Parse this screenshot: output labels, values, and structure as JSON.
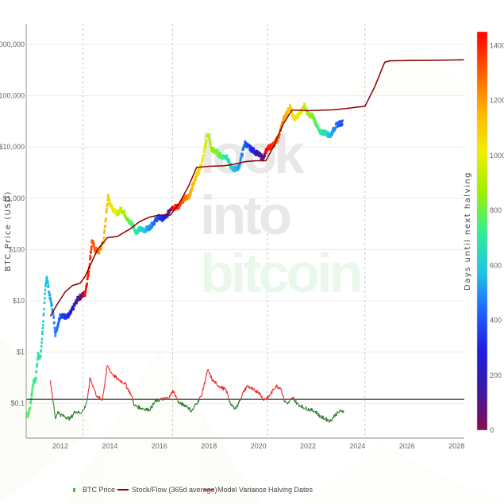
{
  "chart_data": {
    "type": "line",
    "title": "",
    "xlabel": "",
    "ylabel": "BTC Price (USD)",
    "y_scale": "log",
    "ylim": [
      0.03,
      1500000
    ],
    "y_ticks": [
      "$0.1",
      "$1",
      "$10",
      "$100",
      "$1,000",
      "$10,000",
      "$100,000",
      "$1,000,000"
    ],
    "x_ticks": [
      "2012",
      "2014",
      "2016",
      "2018",
      "2020",
      "2022",
      "2024",
      "2026",
      "2028"
    ],
    "xlim": [
      2010.6,
      2028.3
    ],
    "grid": true,
    "legend_position": "bottom",
    "colorbar": {
      "label": "Days until next halving",
      "min": 0,
      "max": 1450,
      "ticks": [
        "0",
        "200",
        "400",
        "600",
        "800",
        "1000",
        "1200",
        "1400"
      ],
      "colorscale": [
        "#8b0a50",
        "#3a1aa0",
        "#1e1ee0",
        "#1e64ff",
        "#1ec8e6",
        "#32f08c",
        "#a0f000",
        "#f0f000",
        "#ffb400",
        "#ff5a00",
        "#ff0000"
      ]
    },
    "halving_dates": [
      2012.91,
      2016.53,
      2020.36,
      2024.3
    ],
    "series": [
      {
        "name": "BTC Price",
        "style": "markers colored by days until next halving",
        "points": [
          [
            2010.55,
            0.06,
            800
          ],
          [
            2010.7,
            0.06,
            780
          ],
          [
            2010.8,
            0.1,
            760
          ],
          [
            2010.9,
            0.25,
            740
          ],
          [
            2011.0,
            0.3,
            700
          ],
          [
            2011.1,
            0.9,
            680
          ],
          [
            2011.2,
            0.8,
            660
          ],
          [
            2011.3,
            3.5,
            620
          ],
          [
            2011.4,
            18,
            590
          ],
          [
            2011.45,
            30,
            570
          ],
          [
            2011.55,
            14,
            550
          ],
          [
            2011.7,
            6,
            510
          ],
          [
            2011.8,
            2.3,
            480
          ],
          [
            2011.9,
            3.5,
            440
          ],
          [
            2012.0,
            5.5,
            400
          ],
          [
            2012.1,
            5,
            360
          ],
          [
            2012.2,
            5,
            330
          ],
          [
            2012.35,
            5.2,
            300
          ],
          [
            2012.5,
            7,
            240
          ],
          [
            2012.7,
            11,
            140
          ],
          [
            2012.9,
            13,
            20
          ],
          [
            2013.0,
            14,
            1440
          ],
          [
            2013.15,
            40,
            1400
          ],
          [
            2013.28,
            150,
            1340
          ],
          [
            2013.4,
            100,
            1300
          ],
          [
            2013.55,
            90,
            1240
          ],
          [
            2013.75,
            150,
            1180
          ],
          [
            2013.92,
            1100,
            1100
          ],
          [
            2014.0,
            800,
            1080
          ],
          [
            2014.15,
            600,
            1030
          ],
          [
            2014.3,
            500,
            980
          ],
          [
            2014.45,
            620,
            920
          ],
          [
            2014.6,
            500,
            870
          ],
          [
            2014.75,
            350,
            800
          ],
          [
            2014.9,
            320,
            760
          ],
          [
            2015.05,
            220,
            700
          ],
          [
            2015.2,
            250,
            640
          ],
          [
            2015.4,
            240,
            580
          ],
          [
            2015.6,
            270,
            510
          ],
          [
            2015.8,
            350,
            440
          ],
          [
            2015.95,
            430,
            380
          ],
          [
            2016.1,
            400,
            320
          ],
          [
            2016.3,
            450,
            240
          ],
          [
            2016.45,
            650,
            40
          ],
          [
            2016.55,
            650,
            1440
          ],
          [
            2016.8,
            700,
            1360
          ],
          [
            2017.0,
            1000,
            1280
          ],
          [
            2017.2,
            1100,
            1200
          ],
          [
            2017.45,
            2500,
            1120
          ],
          [
            2017.7,
            4500,
            1040
          ],
          [
            2017.96,
            19000,
            920
          ],
          [
            2018.1,
            9000,
            880
          ],
          [
            2018.3,
            8000,
            820
          ],
          [
            2018.5,
            6500,
            760
          ],
          [
            2018.7,
            6500,
            680
          ],
          [
            2018.9,
            4000,
            620
          ],
          [
            2019.0,
            3700,
            580
          ],
          [
            2019.2,
            4000,
            520
          ],
          [
            2019.45,
            12000,
            430
          ],
          [
            2019.6,
            10000,
            360
          ],
          [
            2019.8,
            8500,
            280
          ],
          [
            2020.0,
            7200,
            160
          ],
          [
            2020.2,
            6000,
            60
          ],
          [
            2020.36,
            9500,
            1440
          ],
          [
            2020.6,
            11000,
            1360
          ],
          [
            2020.8,
            15000,
            1280
          ],
          [
            2021.0,
            33000,
            1200
          ],
          [
            2021.28,
            63000,
            1110
          ],
          [
            2021.45,
            35000,
            1060
          ],
          [
            2021.6,
            40000,
            1020
          ],
          [
            2021.85,
            65000,
            930
          ],
          [
            2022.0,
            43000,
            880
          ],
          [
            2022.2,
            40000,
            820
          ],
          [
            2022.45,
            20000,
            730
          ],
          [
            2022.7,
            19000,
            650
          ],
          [
            2022.9,
            16500,
            560
          ],
          [
            2023.05,
            23000,
            500
          ],
          [
            2023.2,
            28000,
            440
          ],
          [
            2023.4,
            30000,
            370
          ]
        ]
      },
      {
        "name": "Stock/Flow (365d average)",
        "color": "#8b0000",
        "points": [
          [
            2011.6,
            5
          ],
          [
            2011.9,
            9
          ],
          [
            2012.2,
            15
          ],
          [
            2012.5,
            20
          ],
          [
            2012.8,
            22
          ],
          [
            2013.0,
            30
          ],
          [
            2013.5,
            100
          ],
          [
            2013.9,
            170
          ],
          [
            2014.3,
            180
          ],
          [
            2014.8,
            250
          ],
          [
            2015.2,
            350
          ],
          [
            2015.6,
            430
          ],
          [
            2016.0,
            470
          ],
          [
            2016.45,
            470
          ],
          [
            2016.8,
            800
          ],
          [
            2017.2,
            1800
          ],
          [
            2017.5,
            4000
          ],
          [
            2018.0,
            4200
          ],
          [
            2018.6,
            4300
          ],
          [
            2019.0,
            4600
          ],
          [
            2019.5,
            5200
          ],
          [
            2019.9,
            5400
          ],
          [
            2020.3,
            5400
          ],
          [
            2020.6,
            10000
          ],
          [
            2021.0,
            28000
          ],
          [
            2021.35,
            52000
          ],
          [
            2021.7,
            52000
          ],
          [
            2022.0,
            51000
          ],
          [
            2022.5,
            52000
          ],
          [
            2023.0,
            53000
          ],
          [
            2023.5,
            56000
          ],
          [
            2024.0,
            60000
          ],
          [
            2024.3,
            62000
          ],
          [
            2024.7,
            150000
          ],
          [
            2025.1,
            450000
          ],
          [
            2025.3,
            480000
          ],
          [
            2026.0,
            485000
          ],
          [
            2027.0,
            490000
          ],
          [
            2028.3,
            500000
          ]
        ]
      },
      {
        "name": "Model Variance",
        "color_above": "#e8282d",
        "color_below": "#2e7d32",
        "baseline": 0.12,
        "points": [
          [
            2011.6,
            0.28
          ],
          [
            2011.7,
            0.12
          ],
          [
            2011.8,
            0.05
          ],
          [
            2011.9,
            0.07
          ],
          [
            2012.0,
            0.06
          ],
          [
            2012.2,
            0.055
          ],
          [
            2012.4,
            0.05
          ],
          [
            2012.6,
            0.07
          ],
          [
            2012.8,
            0.065
          ],
          [
            2012.95,
            0.075
          ],
          [
            2013.1,
            0.12
          ],
          [
            2013.2,
            0.32
          ],
          [
            2013.35,
            0.2
          ],
          [
            2013.5,
            0.13
          ],
          [
            2013.7,
            0.12
          ],
          [
            2013.9,
            0.55
          ],
          [
            2014.05,
            0.4
          ],
          [
            2014.3,
            0.3
          ],
          [
            2014.6,
            0.25
          ],
          [
            2014.85,
            0.15
          ],
          [
            2015.0,
            0.09
          ],
          [
            2015.3,
            0.08
          ],
          [
            2015.6,
            0.075
          ],
          [
            2015.85,
            0.11
          ],
          [
            2016.1,
            0.12
          ],
          [
            2016.4,
            0.13
          ],
          [
            2016.55,
            0.18
          ],
          [
            2016.8,
            0.1
          ],
          [
            2017.1,
            0.09
          ],
          [
            2017.3,
            0.07
          ],
          [
            2017.5,
            0.1
          ],
          [
            2017.7,
            0.14
          ],
          [
            2017.95,
            0.45
          ],
          [
            2018.15,
            0.28
          ],
          [
            2018.4,
            0.22
          ],
          [
            2018.7,
            0.18
          ],
          [
            2018.9,
            0.09
          ],
          [
            2019.1,
            0.08
          ],
          [
            2019.35,
            0.15
          ],
          [
            2019.55,
            0.22
          ],
          [
            2019.8,
            0.18
          ],
          [
            2020.0,
            0.17
          ],
          [
            2020.2,
            0.12
          ],
          [
            2020.4,
            0.13
          ],
          [
            2020.7,
            0.22
          ],
          [
            2020.9,
            0.2
          ],
          [
            2021.05,
            0.11
          ],
          [
            2021.2,
            0.1
          ],
          [
            2021.4,
            0.13
          ],
          [
            2021.55,
            0.1
          ],
          [
            2021.7,
            0.09
          ],
          [
            2021.9,
            0.08
          ],
          [
            2022.1,
            0.075
          ],
          [
            2022.3,
            0.07
          ],
          [
            2022.5,
            0.055
          ],
          [
            2022.7,
            0.05
          ],
          [
            2022.9,
            0.045
          ],
          [
            2023.1,
            0.06
          ],
          [
            2023.3,
            0.07
          ],
          [
            2023.45,
            0.072
          ]
        ]
      },
      {
        "name": "Halving Dates",
        "style": "dotted vertical lines",
        "color": "#bbbbbb",
        "x": [
          2012.91,
          2016.53,
          2020.36,
          2024.3
        ]
      }
    ],
    "annotations": [
      "look into bitcoin (watermark)"
    ]
  },
  "axes": {
    "y_title": "BTC Price (USD)",
    "y2_title": "Days until next halving"
  },
  "watermark": {
    "line1": "look",
    "line2": "into",
    "line3": "bitcoin"
  },
  "legend": {
    "items": [
      {
        "label": "BTC Price",
        "color": "#32c832"
      },
      {
        "label": "Stock/Flow (365d average)",
        "color": "#8b0000"
      },
      {
        "label": "Model Variance",
        "color": "#e8282d"
      },
      {
        "label": "Halving Dates",
        "color": "#aaaaaa"
      }
    ]
  }
}
